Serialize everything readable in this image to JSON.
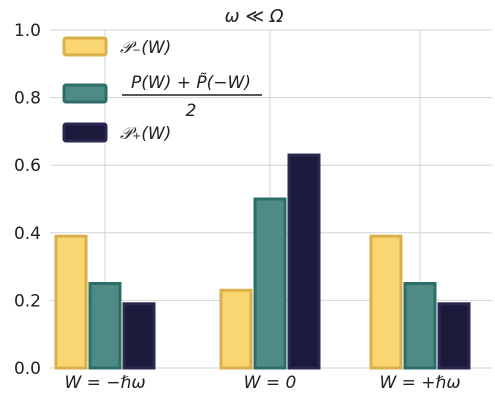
{
  "chart_data": {
    "type": "bar",
    "title": "ω ≪ Ω",
    "xlabel": "",
    "ylabel": "",
    "categories": [
      "W = −ℏω",
      "W = 0",
      "W = +ℏω"
    ],
    "series": [
      {
        "name": "𝒫₋(W)",
        "color": "#fad672",
        "edge": "#d9b04a",
        "values": [
          0.39,
          0.23,
          0.39
        ]
      },
      {
        "name": "[P(W) + P̃(−W)] / 2",
        "color": "#4f8a86",
        "edge": "#2e6e69",
        "values": [
          0.25,
          0.5,
          0.25
        ]
      },
      {
        "name": "𝒫₊(W)",
        "color": "#1c1a3a",
        "edge": "#2a2850",
        "values": [
          0.19,
          0.63,
          0.19
        ]
      }
    ],
    "ylim": [
      0.0,
      1.0
    ],
    "yticks": [
      "0.0",
      "0.2",
      "0.4",
      "0.6",
      "0.8",
      "1.0"
    ],
    "grid": true,
    "legend_position": "top-left"
  },
  "legend": {
    "item0_label": "𝒫₋(W)",
    "item1_numerator": "P(W) + P̃(−W)",
    "item1_denominator": "2",
    "item2_label": "𝒫₊(W)"
  }
}
